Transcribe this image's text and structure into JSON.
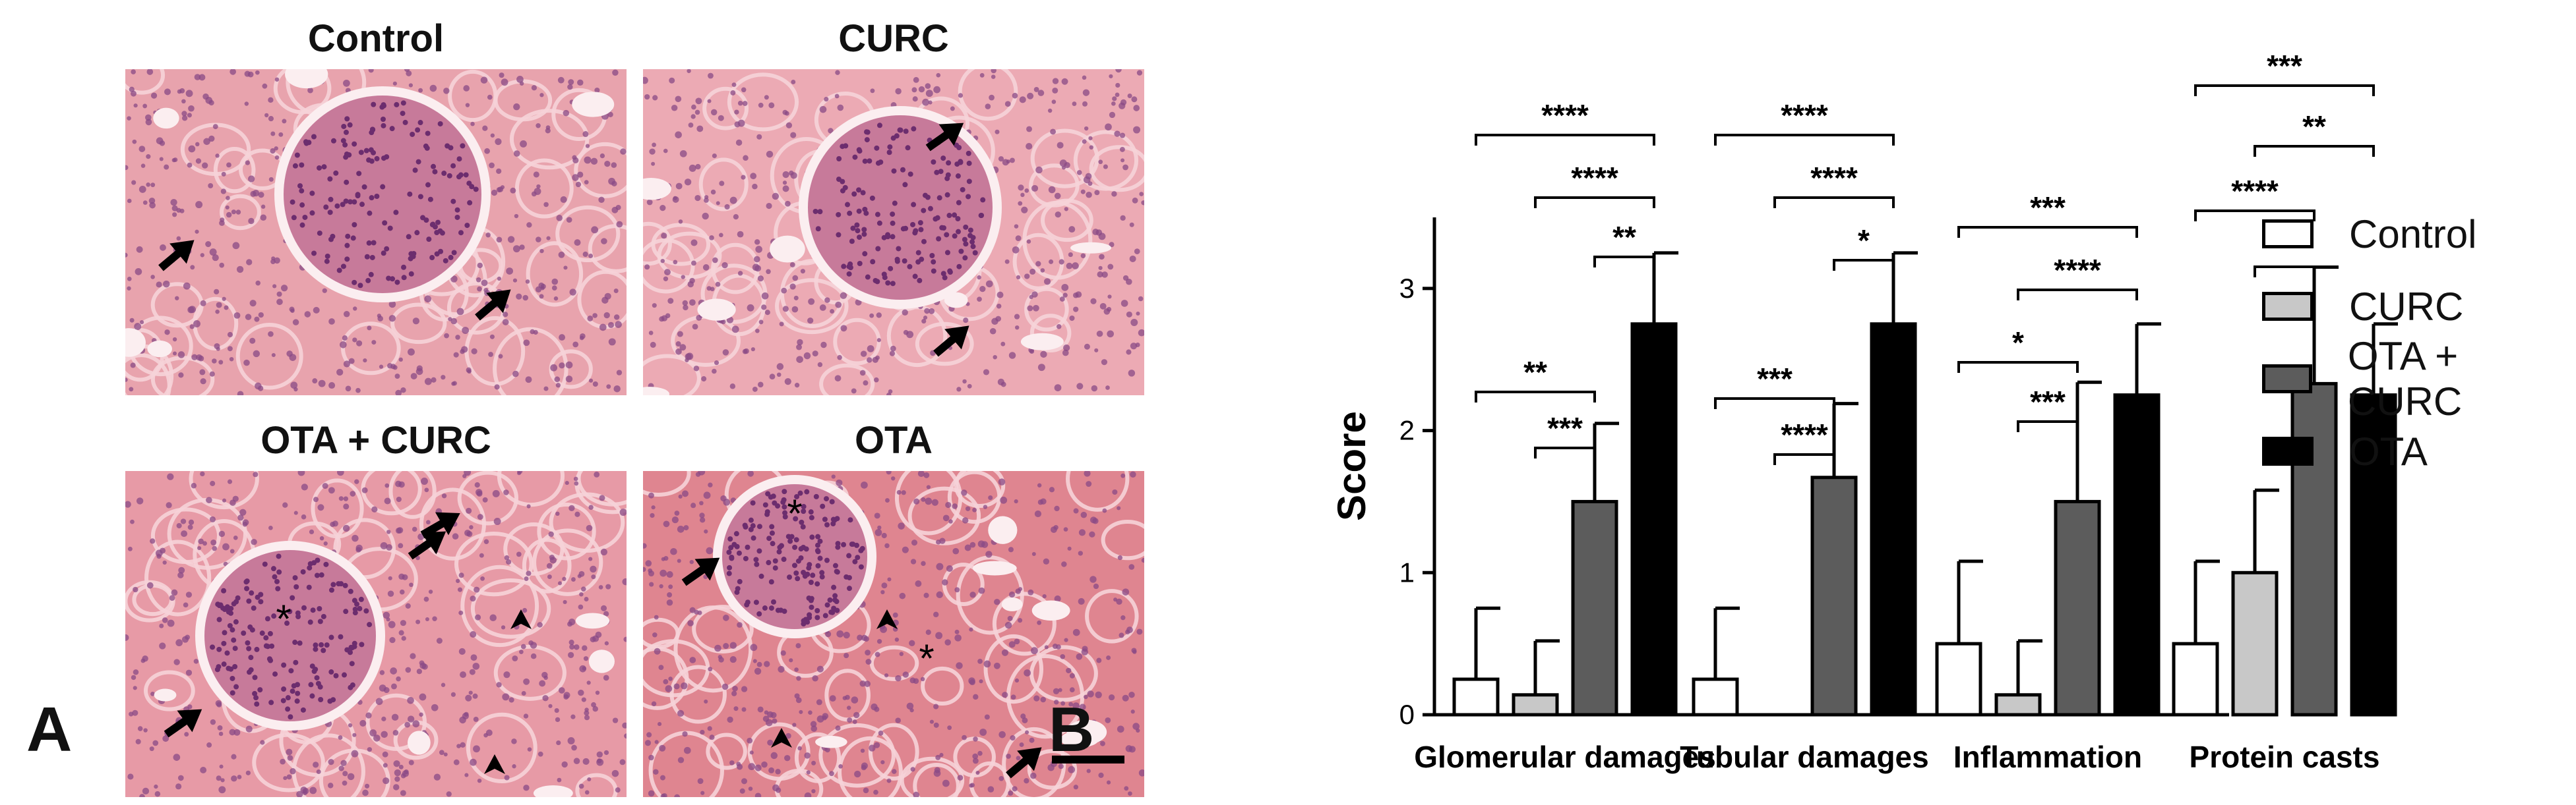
{
  "panel_a": {
    "letter": "A",
    "images": [
      {
        "title": "Control",
        "tint": "#e8a3ad",
        "markers": [
          "arrow",
          "arrow"
        ]
      },
      {
        "title": "CURC",
        "tint": "#ecaab4",
        "markers": [
          "arrow",
          "arrow"
        ]
      },
      {
        "title": "OTA + CURC",
        "tint": "#e79aa6",
        "markers": [
          "arrow",
          "arrow",
          "arrow",
          "arrowhead",
          "arrowhead",
          "asterisk"
        ]
      },
      {
        "title": "OTA",
        "tint": "#df8590",
        "markers": [
          "arrow",
          "arrow",
          "arrowhead",
          "arrowhead",
          "asterisk",
          "asterisk"
        ]
      }
    ],
    "marker_text": {
      "asterisk": "*"
    }
  },
  "panel_b": {
    "letter": "B"
  },
  "legend": [
    {
      "label": "Control",
      "color": "#ffffff"
    },
    {
      "label": "CURC",
      "color": "#c8c8c8"
    },
    {
      "label": "OTA + CURC",
      "color": "#5c5c5c"
    },
    {
      "label": "OTA",
      "color": "#000000"
    }
  ],
  "chart_data": {
    "type": "bar",
    "title": "",
    "xlabel": "",
    "ylabel": "Score",
    "ylim": [
      0,
      3.5
    ],
    "yticks": [
      "0",
      "1",
      "2",
      "3"
    ],
    "grid": false,
    "legend_position": "right",
    "categories": [
      "Glomerular damages",
      "Tubular damages",
      "Inflammation",
      "Protein casts"
    ],
    "series": [
      {
        "name": "Control",
        "color": "#ffffff",
        "values": [
          0.25,
          0.25,
          0.5,
          0.5
        ],
        "errors": [
          0.5,
          0.5,
          0.58,
          0.58
        ]
      },
      {
        "name": "CURC",
        "color": "#c8c8c8",
        "values": [
          0.14,
          0.0,
          0.14,
          1.0
        ],
        "errors": [
          0.38,
          0.0,
          0.38,
          0.58
        ]
      },
      {
        "name": "OTA + CURC",
        "color": "#5c5c5c",
        "values": [
          1.5,
          1.67,
          1.5,
          2.33
        ],
        "errors": [
          0.55,
          0.52,
          0.84,
          0.82
        ]
      },
      {
        "name": "OTA",
        "color": "#000000",
        "values": [
          2.75,
          2.75,
          2.25,
          2.25
        ],
        "errors": [
          0.5,
          0.5,
          0.5,
          0.5
        ]
      }
    ],
    "significance": [
      {
        "category": 0,
        "from": 0,
        "to": 3,
        "label": "****",
        "level": 3
      },
      {
        "category": 0,
        "from": 1,
        "to": 3,
        "label": "****",
        "level": 2
      },
      {
        "category": 0,
        "from": 2,
        "to": 3,
        "label": "**",
        "level": 1
      },
      {
        "category": 0,
        "from": 0,
        "to": 2,
        "label": "**",
        "level": -1
      },
      {
        "category": 0,
        "from": 1,
        "to": 2,
        "label": "***",
        "level": -2
      },
      {
        "category": 1,
        "from": 0,
        "to": 3,
        "label": "****",
        "level": 3
      },
      {
        "category": 1,
        "from": 1,
        "to": 3,
        "label": "****",
        "level": 2
      },
      {
        "category": 1,
        "from": 2,
        "to": 3,
        "label": "*",
        "level": 1
      },
      {
        "category": 1,
        "from": 0,
        "to": 2,
        "label": "***",
        "level": -1
      },
      {
        "category": 1,
        "from": 1,
        "to": 2,
        "label": "****",
        "level": -2
      },
      {
        "category": 2,
        "from": 0,
        "to": 3,
        "label": "***",
        "level": 3
      },
      {
        "category": 2,
        "from": 1,
        "to": 3,
        "label": "****",
        "level": 2
      },
      {
        "category": 2,
        "from": 0,
        "to": 2,
        "label": "*",
        "level": 1
      },
      {
        "category": 2,
        "from": 1,
        "to": 2,
        "label": "***",
        "level": 0
      },
      {
        "category": 3,
        "from": 0,
        "to": 3,
        "label": "***",
        "level": 5
      },
      {
        "category": 3,
        "from": 1,
        "to": 3,
        "label": "**",
        "level": 4
      },
      {
        "category": 3,
        "from": 0,
        "to": 2,
        "label": "****",
        "level": 3
      },
      {
        "category": 3,
        "from": 1,
        "to": 2,
        "label": "***",
        "level": 2
      }
    ]
  }
}
